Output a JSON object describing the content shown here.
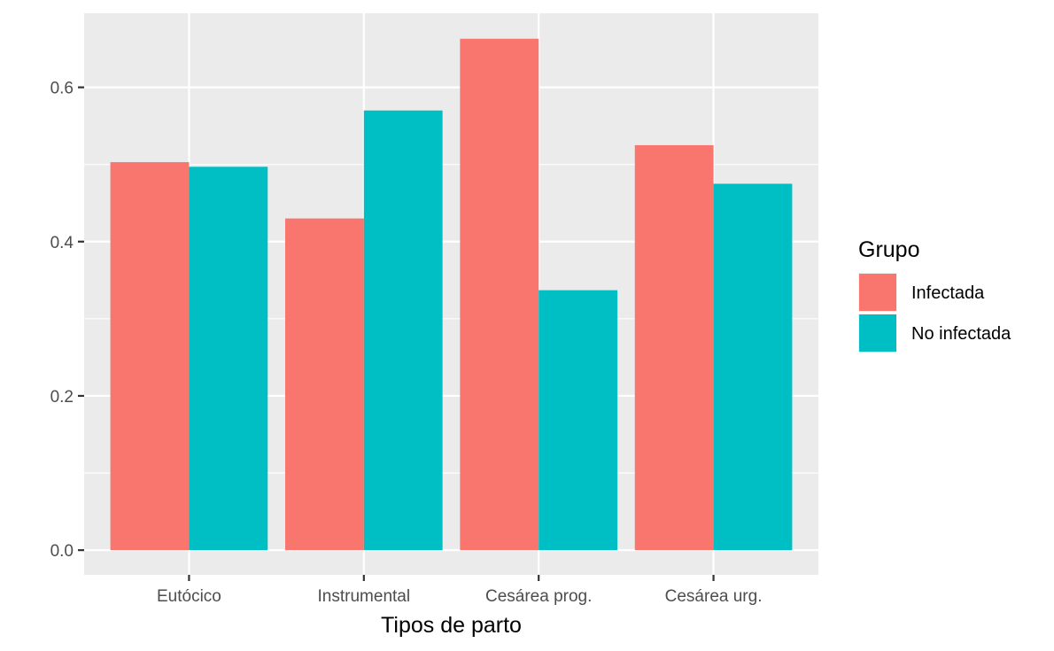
{
  "chart_data": {
    "type": "bar",
    "categories": [
      "Eutócico",
      "Instrumental",
      "Cesárea prog.",
      "Cesárea urg."
    ],
    "series": [
      {
        "name": "Infectada",
        "color": "#F8766D",
        "values": [
          0.503,
          0.43,
          0.663,
          0.525
        ]
      },
      {
        "name": "No infectada",
        "color": "#00BFC4",
        "values": [
          0.497,
          0.57,
          0.337,
          0.475
        ]
      }
    ],
    "xlabel": "Tipos de parto",
    "ylabel": "",
    "ylim": [
      -0.032,
      0.696
    ],
    "yticks": [
      0.0,
      0.2,
      0.4,
      0.6
    ],
    "ytick_labels": [
      "0.0",
      "0.2",
      "0.4",
      "0.6"
    ],
    "legend": {
      "title": "Grupo",
      "position": "right"
    },
    "grid": true,
    "panel_background": "#EBEBEB"
  }
}
